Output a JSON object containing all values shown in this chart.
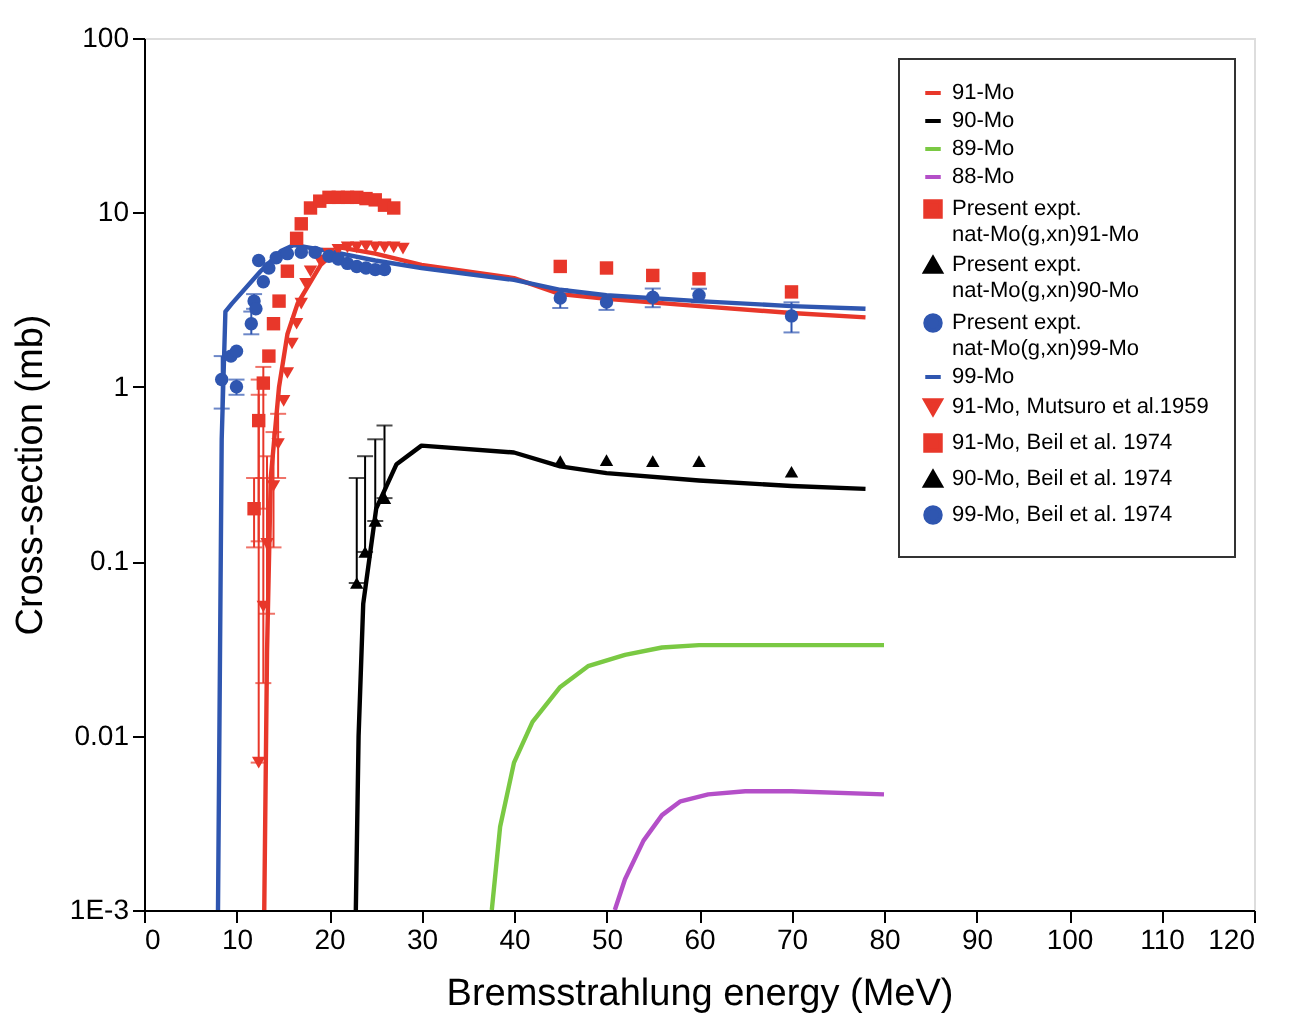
{
  "chart_data": {
    "type": "line",
    "xlabel": "Bremsstrahlung energy (MeV)",
    "ylabel": "Cross-section (mb)",
    "log": "y",
    "xlim": [
      0,
      120
    ],
    "ylim": [
      0.001,
      100
    ],
    "xticks": [
      0,
      10,
      20,
      30,
      40,
      50,
      60,
      70,
      80,
      90,
      100,
      110,
      120
    ],
    "yticks": [
      {
        "value": 0.001,
        "label": "1E-3"
      },
      0.01,
      0.1,
      1,
      10,
      100
    ],
    "grid": false,
    "legend": "top right",
    "series": [
      {
        "name": "91-Mo",
        "color": "#e8372a",
        "x": [
          13,
          13.3,
          13.7,
          14.6,
          15.5,
          16.6,
          19.1,
          21.2,
          25,
          30,
          40,
          45,
          50,
          60,
          70,
          78
        ],
        "values": [
          0.001,
          0.03,
          0.3,
          1,
          2,
          3,
          5,
          6.3,
          5.8,
          5,
          4.2,
          3.4,
          3.2,
          2.9,
          2.65,
          2.5
        ]
      },
      {
        "name": "90-Mo",
        "color": "#000000",
        "x": [
          22.9,
          23.2,
          23.7,
          25.1,
          27.3,
          30,
          40,
          45,
          50,
          60,
          70,
          78
        ],
        "values": [
          0.001,
          0.01,
          0.057,
          0.2,
          0.36,
          0.46,
          0.42,
          0.35,
          0.32,
          0.29,
          0.27,
          0.26
        ]
      },
      {
        "name": "89-Mo",
        "color": "#7ac943",
        "x": [
          37.6,
          38.5,
          40,
          42,
          45,
          48,
          52,
          56,
          60,
          70,
          80
        ],
        "values": [
          0.001,
          0.003,
          0.007,
          0.012,
          0.019,
          0.025,
          0.029,
          0.032,
          0.033,
          0.033,
          0.033
        ]
      },
      {
        "name": "88-Mo",
        "color": "#b44fc8",
        "x": [
          50.9,
          52,
          54,
          56,
          58,
          61,
          65,
          70,
          80
        ],
        "values": [
          0.001,
          0.0015,
          0.0025,
          0.0035,
          0.0042,
          0.0046,
          0.0048,
          0.0048,
          0.0046
        ]
      },
      {
        "name": "Present expt.\nnat-Mo(g,xn)91-Mo",
        "type": "scatter",
        "marker": "square",
        "color": "#e8372a",
        "x": [
          45,
          50,
          55,
          60,
          70
        ],
        "values": [
          4.9,
          4.8,
          4.35,
          4.16,
          3.5
        ]
      },
      {
        "name": "Present expt.\nnat-Mo(g,xn)90-Mo",
        "type": "scatter",
        "marker": "triangle",
        "color": "#000000",
        "x": [
          45,
          50,
          55,
          60,
          70
        ],
        "values": [
          0.375,
          0.38,
          0.375,
          0.375,
          0.326
        ]
      },
      {
        "name": "Present  expt.\nnat-Mo(g,xn)99-Mo",
        "type": "scatter",
        "marker": "circle",
        "color": "#2f56b0",
        "x": [
          10,
          11.9,
          12.4,
          45,
          50,
          55,
          60,
          70
        ],
        "values": [
          1.0,
          3.1,
          5.3,
          3.23,
          3.06,
          3.26,
          3.35,
          2.55
        ],
        "errors": [
          0.1,
          0.3,
          null,
          0.4,
          0.3,
          0.4,
          0.3,
          0.5
        ]
      },
      {
        "name": "99-Mo",
        "color": "#2f56b0",
        "x": [
          8.0,
          8.4,
          8.8,
          9.5,
          12.6,
          14.8,
          16.2,
          20,
          25,
          30,
          40,
          45,
          50,
          60,
          70,
          78
        ],
        "values": [
          0.001,
          0.5,
          2.7,
          3.0,
          4.6,
          6.0,
          6.5,
          6.0,
          5.3,
          4.8,
          4.1,
          3.6,
          3.35,
          3.1,
          2.9,
          2.8
        ]
      },
      {
        "name": "91-Mo, Mutsuro et al.1959",
        "type": "scatter",
        "marker": "triangle-down",
        "color": "#e8372a",
        "x": [
          12.4,
          12.9,
          13.3,
          14.0,
          14.5,
          15.1,
          15.5,
          16.0,
          16.5,
          17,
          17.5,
          18,
          19,
          20,
          21,
          22,
          23,
          24,
          25,
          26,
          27,
          28
        ],
        "values": [
          0.007,
          0.055,
          0.126,
          0.27,
          0.47,
          0.83,
          1.2,
          1.77,
          2.3,
          3.0,
          3.9,
          4.6,
          5.3,
          5.8,
          6.1,
          6.3,
          6.3,
          6.4,
          6.3,
          6.3,
          6.3,
          6.2
        ],
        "errors": [
          [
            0.007,
            0.9
          ],
          [
            0.02,
            0.3
          ],
          [
            0.05,
            0.4
          ],
          [
            0.12,
            0.55
          ],
          [
            0.3,
            0.7
          ],
          null,
          null,
          null,
          null,
          null,
          null,
          null,
          null,
          null,
          null,
          null,
          null,
          null,
          null,
          null,
          null,
          null
        ]
      },
      {
        "name": "91-Mo, Beil et al. 1974",
        "type": "scatter",
        "marker": "square",
        "color": "#e8372a",
        "x": [
          11.9,
          12.4,
          12.9,
          13.5,
          14.0,
          14.6,
          15.5,
          16.5,
          17,
          18,
          19,
          20,
          21,
          22,
          23,
          24,
          25,
          26,
          27
        ],
        "values": [
          0.2,
          0.64,
          1.05,
          1.5,
          2.3,
          3.1,
          4.6,
          7.1,
          8.6,
          10.6,
          11.6,
          12.2,
          12.2,
          12.2,
          12.2,
          12.0,
          11.8,
          11.0,
          10.6
        ],
        "errors": [
          [
            0.12,
            0.3
          ],
          [
            0.13,
            1.1
          ],
          [
            0.2,
            1.3
          ],
          null,
          null,
          null,
          null,
          null,
          null,
          null,
          null,
          null,
          null,
          null,
          null,
          null,
          null,
          null,
          null
        ]
      },
      {
        "name": "90-Mo, Beil et al. 1974",
        "type": "scatter",
        "marker": "triangle",
        "color": "#000000",
        "x": [
          23,
          23.9,
          25,
          26
        ],
        "values": [
          0.075,
          0.113,
          0.17,
          0.23
        ],
        "errors": [
          [
            0.075,
            0.3
          ],
          [
            0.113,
            0.4
          ],
          [
            0.17,
            0.5
          ],
          [
            0.23,
            0.6
          ]
        ]
      },
      {
        "name": "99-Mo, Beil et al. 1974",
        "type": "scatter",
        "marker": "circle",
        "color": "#2f56b0",
        "x": [
          8.4,
          9.4,
          10,
          11.6,
          12.1,
          12.9,
          13.5,
          14.3,
          15.5,
          17,
          18.5,
          20,
          21,
          22,
          23,
          24,
          25,
          26
        ],
        "values": [
          1.1,
          1.5,
          1.6,
          2.3,
          2.8,
          4.0,
          4.8,
          5.5,
          5.8,
          5.9,
          5.9,
          5.6,
          5.4,
          5.1,
          4.9,
          4.8,
          4.7,
          4.7
        ],
        "errors": [
          [
            0.75,
            1.5
          ],
          null,
          null,
          [
            2.0,
            2.7
          ],
          null,
          null,
          null,
          null,
          null,
          null,
          null,
          null,
          null,
          null,
          null,
          null,
          null,
          null
        ]
      }
    ]
  }
}
